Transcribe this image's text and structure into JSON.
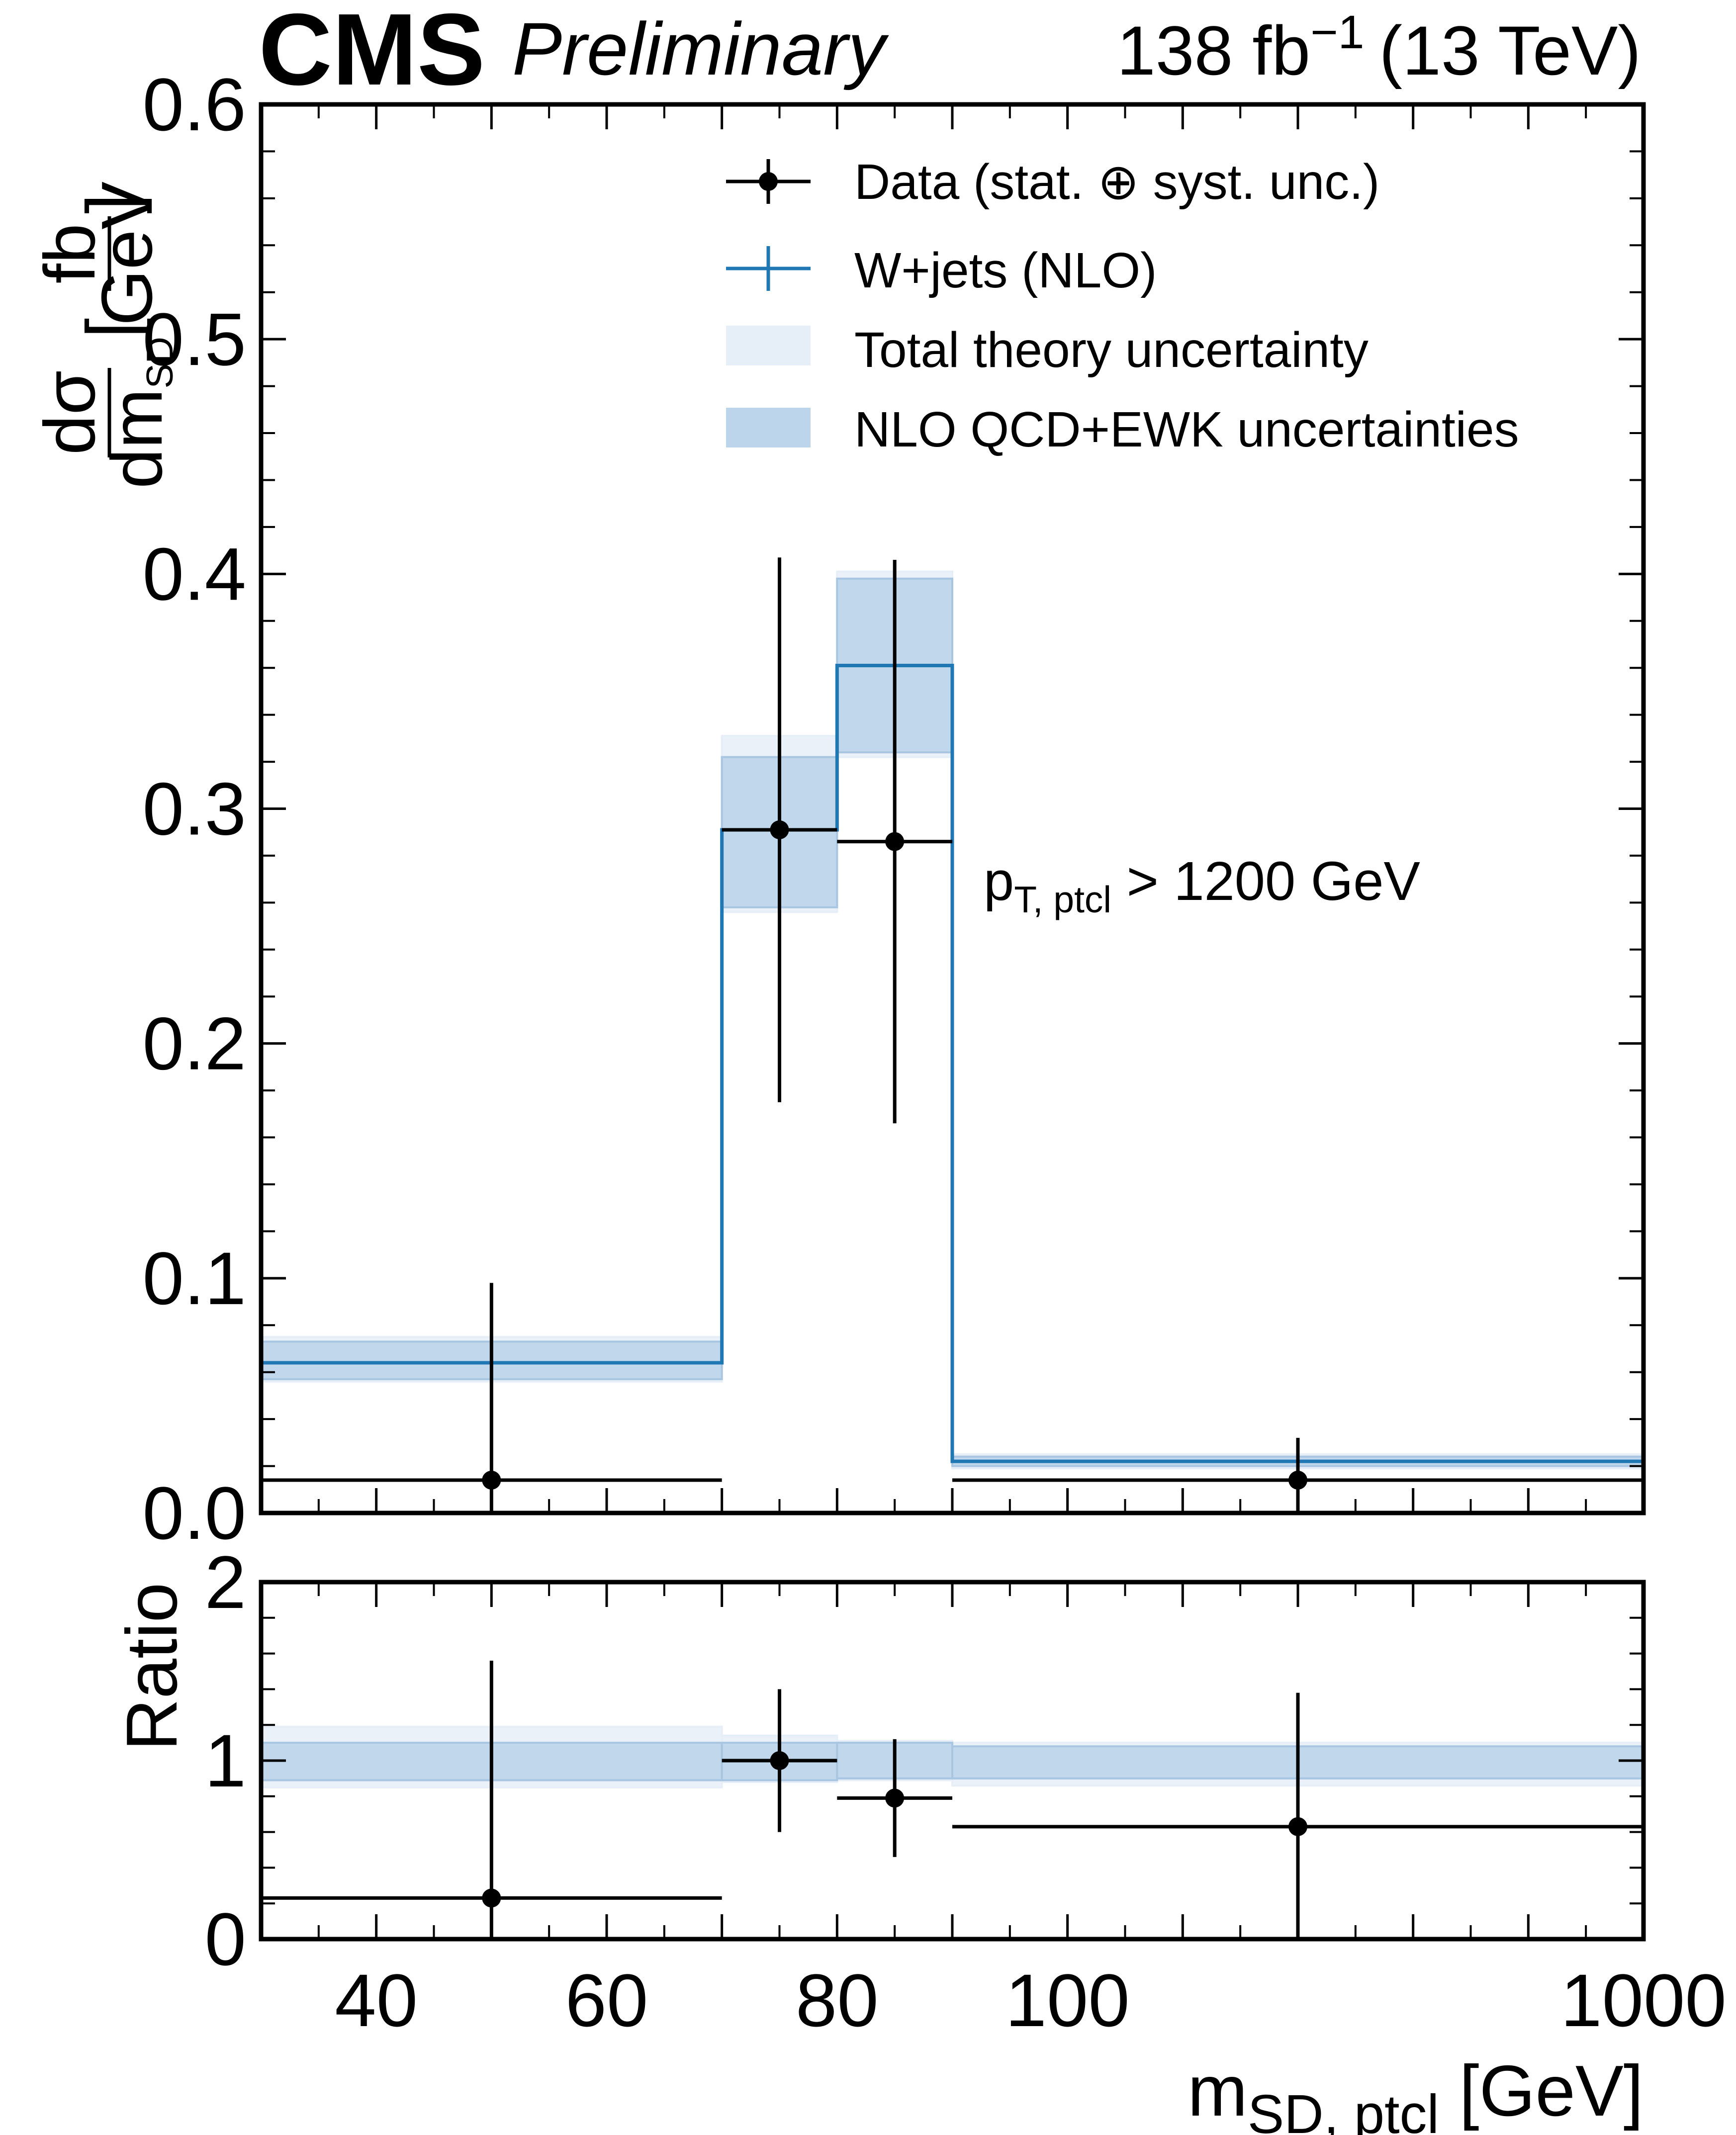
{
  "header": {
    "experiment": "CMS",
    "status": "Preliminary",
    "luminosity": "138 fb",
    "lumi_exponent": "−1",
    "energy": "(13 TeV)"
  },
  "colors": {
    "prediction": "#1f77b4",
    "band_total": "#e6eef7",
    "band_nlo": "#bcd5ea",
    "data": "#000000"
  },
  "chart_data": [
    {
      "panel": "main",
      "type": "step",
      "ylabel_num": "dσ",
      "ylabel_den": "dm",
      "ylabel_den_sub": "SD",
      "ylabel_unit_num": "fb",
      "ylabel_unit_den": "GeV",
      "ylim": [
        0.0,
        0.6
      ],
      "yticks": [
        "0.0",
        "0.1",
        "0.2",
        "0.3",
        "0.4",
        "0.5",
        "0.6"
      ],
      "yticks_values": [
        0.0,
        0.1,
        0.2,
        0.3,
        0.4,
        0.5,
        0.6
      ],
      "annotation_main": "p",
      "annotation_sub": "T, ptcl",
      "annotation_rest": " > 1200 GeV",
      "bins": [
        "30-70",
        "70-80",
        "80-90",
        "90-1000"
      ],
      "bin_display_edges": [
        0,
        4,
        5,
        6,
        12
      ],
      "prediction": [
        0.064,
        0.291,
        0.361,
        0.022
      ],
      "total_theory_band": [
        [
          0.056,
          0.075
        ],
        [
          0.256,
          0.331
        ],
        [
          0.322,
          0.401
        ],
        [
          0.019,
          0.025
        ]
      ],
      "nlo_band": [
        [
          0.057,
          0.073
        ],
        [
          0.258,
          0.322
        ],
        [
          0.324,
          0.398
        ],
        [
          0.02,
          0.024
        ]
      ],
      "data": [
        {
          "x": 2.0,
          "xlo": 0,
          "xhi": 4,
          "y": 0.014,
          "ylo": 0.0,
          "yhi": 0.098
        },
        {
          "x": 4.5,
          "xlo": 4,
          "xhi": 5,
          "y": 0.291,
          "ylo": 0.175,
          "yhi": 0.407
        },
        {
          "x": 5.5,
          "xlo": 5,
          "xhi": 6,
          "y": 0.286,
          "ylo": 0.166,
          "yhi": 0.406
        },
        {
          "x": 9.0,
          "xlo": 6,
          "xhi": 12,
          "y": 0.014,
          "ylo": 0.0,
          "yhi": 0.032
        }
      ]
    },
    {
      "panel": "ratio",
      "type": "step",
      "ylabel": "Ratio",
      "ylim": [
        0,
        2
      ],
      "yticks": [
        "0",
        "1",
        "2"
      ],
      "yticks_values": [
        0,
        1,
        2
      ],
      "xlabel_main": "m",
      "xlabel_sub": "SD, ptcl",
      "xlabel_unit": " [GeV]",
      "xticks": [
        "40",
        "60",
        "80",
        "100",
        "1000"
      ],
      "xticks_display_pos": [
        1,
        3,
        5,
        7,
        12
      ],
      "total_theory_band": [
        [
          0.85,
          1.19
        ],
        [
          0.88,
          1.14
        ],
        [
          0.89,
          1.11
        ],
        [
          0.86,
          1.1
        ]
      ],
      "nlo_band": [
        [
          0.89,
          1.1
        ],
        [
          0.89,
          1.1
        ],
        [
          0.9,
          1.1
        ],
        [
          0.9,
          1.08
        ]
      ],
      "data": [
        {
          "x": 2.0,
          "xlo": 0,
          "xhi": 4,
          "y": 0.23,
          "ylo": 0.0,
          "yhi": 1.56
        },
        {
          "x": 4.5,
          "xlo": 4,
          "xhi": 5,
          "y": 1.0,
          "ylo": 0.6,
          "yhi": 1.4
        },
        {
          "x": 5.5,
          "xlo": 5,
          "xhi": 6,
          "y": 0.79,
          "ylo": 0.46,
          "yhi": 1.12
        },
        {
          "x": 9.0,
          "xlo": 6,
          "xhi": 12,
          "y": 0.63,
          "ylo": 0.0,
          "yhi": 1.38
        }
      ]
    }
  ],
  "legend": [
    {
      "key": "data",
      "label": "Data (stat. ⊕ syst. unc.)"
    },
    {
      "key": "prediction",
      "label": "W+jets (NLO)"
    },
    {
      "key": "band_total",
      "label": "Total theory uncertainty"
    },
    {
      "key": "band_nlo",
      "label": "NLO QCD+EWK uncertainties"
    }
  ]
}
